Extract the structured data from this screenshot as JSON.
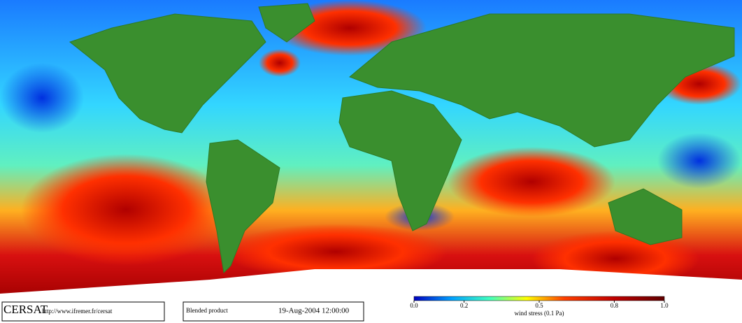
{
  "footer": {
    "logo": "CERSAT",
    "url": "http://www.ifremer.fr/cersat",
    "product": "Blended product",
    "date": "19-Aug-2004 12:00:00"
  },
  "colorbar": {
    "lim": [
      0,
      1
    ],
    "ticks": [
      {
        "value": 0,
        "label": "0.0"
      },
      {
        "value": 0.2,
        "label": "0.2"
      },
      {
        "value": 0.5,
        "label": "0.5"
      },
      {
        "value": 0.8,
        "label": "0.8"
      },
      {
        "value": 1,
        "label": "1.0"
      }
    ],
    "label": "wind stress (0.1 Pa)"
  }
}
